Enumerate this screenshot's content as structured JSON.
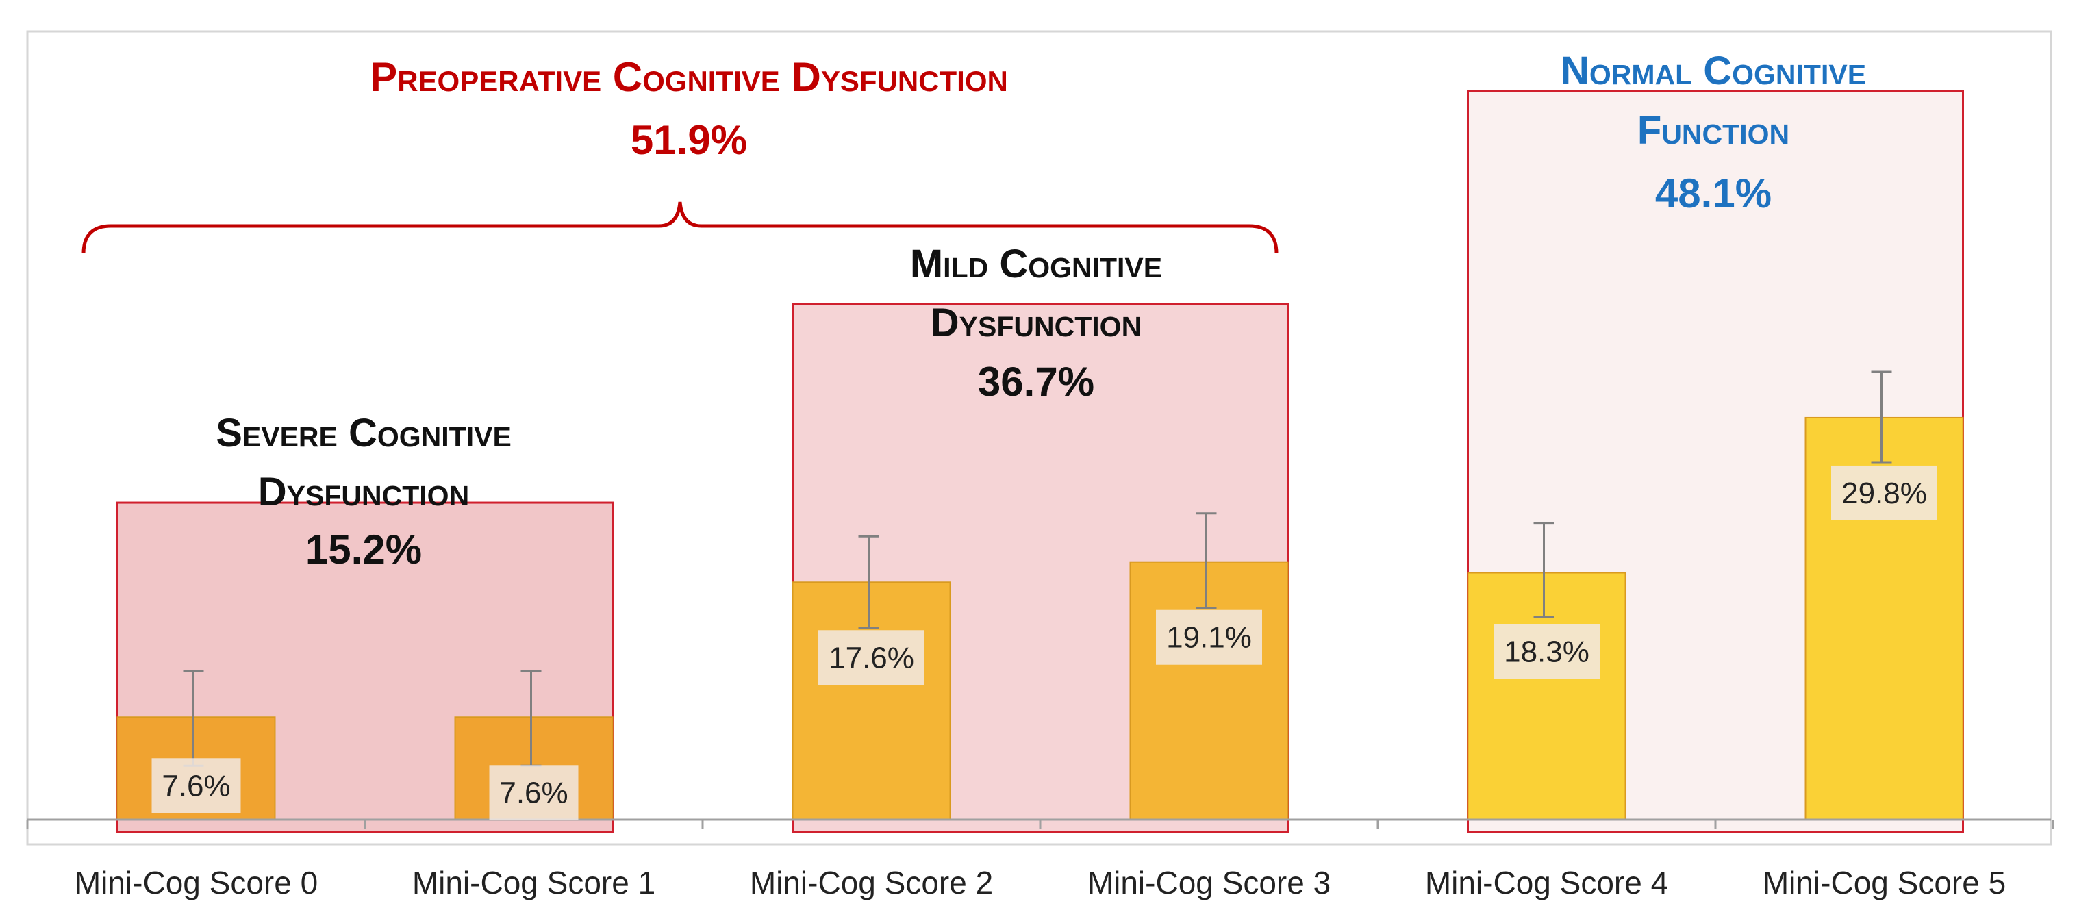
{
  "chart_data": {
    "type": "bar",
    "title": "",
    "xlabel": "",
    "ylabel": "",
    "ylim": [
      0,
      55
    ],
    "categories": [
      "Mini-Cog Score 0",
      "Mini-Cog Score 1",
      "Mini-Cog Score 2",
      "Mini-Cog Score 3",
      "Mini-Cog Score 4",
      "Mini-Cog Score 5"
    ],
    "values": [
      7.6,
      7.6,
      17.6,
      19.1,
      18.3,
      29.8
    ],
    "value_labels": [
      "7.6%",
      "7.6%",
      "17.6%",
      "19.1%",
      "18.3%",
      "29.8%"
    ],
    "error_bars": [
      {
        "low": 4.0,
        "high": 11.0
      },
      {
        "low": 4.0,
        "high": 11.0
      },
      {
        "low": 14.2,
        "high": 21.0
      },
      {
        "low": 15.7,
        "high": 22.7
      },
      {
        "low": 15.0,
        "high": 22.0
      },
      {
        "low": 26.5,
        "high": 33.2
      }
    ],
    "bar_colors": [
      "#F0A330",
      "#F0A330",
      "#F4B535",
      "#F4B535",
      "#FAD136",
      "#FAD136"
    ],
    "groups": [
      {
        "title_line1": "Severe Cognitive",
        "title_line2": "Dysfunction",
        "percent": "15.2%",
        "categories": [
          0,
          1
        ],
        "box_top_value": 23.5,
        "fill": "#E8A0A3",
        "fill_opacity": 0.6,
        "title_color": "#111111"
      },
      {
        "title_line1": "Mild Cognitive",
        "title_line2": "Dysfunction",
        "percent": "36.7%",
        "categories": [
          2,
          3
        ],
        "box_top_value": 38.2,
        "fill": "#E8A0A3",
        "fill_opacity": 0.45,
        "title_color": "#111111"
      },
      {
        "title_line1": "Normal Cognitive",
        "title_line2": "Function",
        "percent": "48.1%",
        "categories": [
          4,
          5
        ],
        "box_top_value": 54.0,
        "fill": "#F6E7E6",
        "fill_opacity": 0.6,
        "title_color": "#1E72C0"
      }
    ],
    "bracket": {
      "title": "Preoperative Cognitive Dysfunction",
      "percent": "51.9%",
      "color": "#C00000"
    },
    "grid": false,
    "legend": "none"
  }
}
